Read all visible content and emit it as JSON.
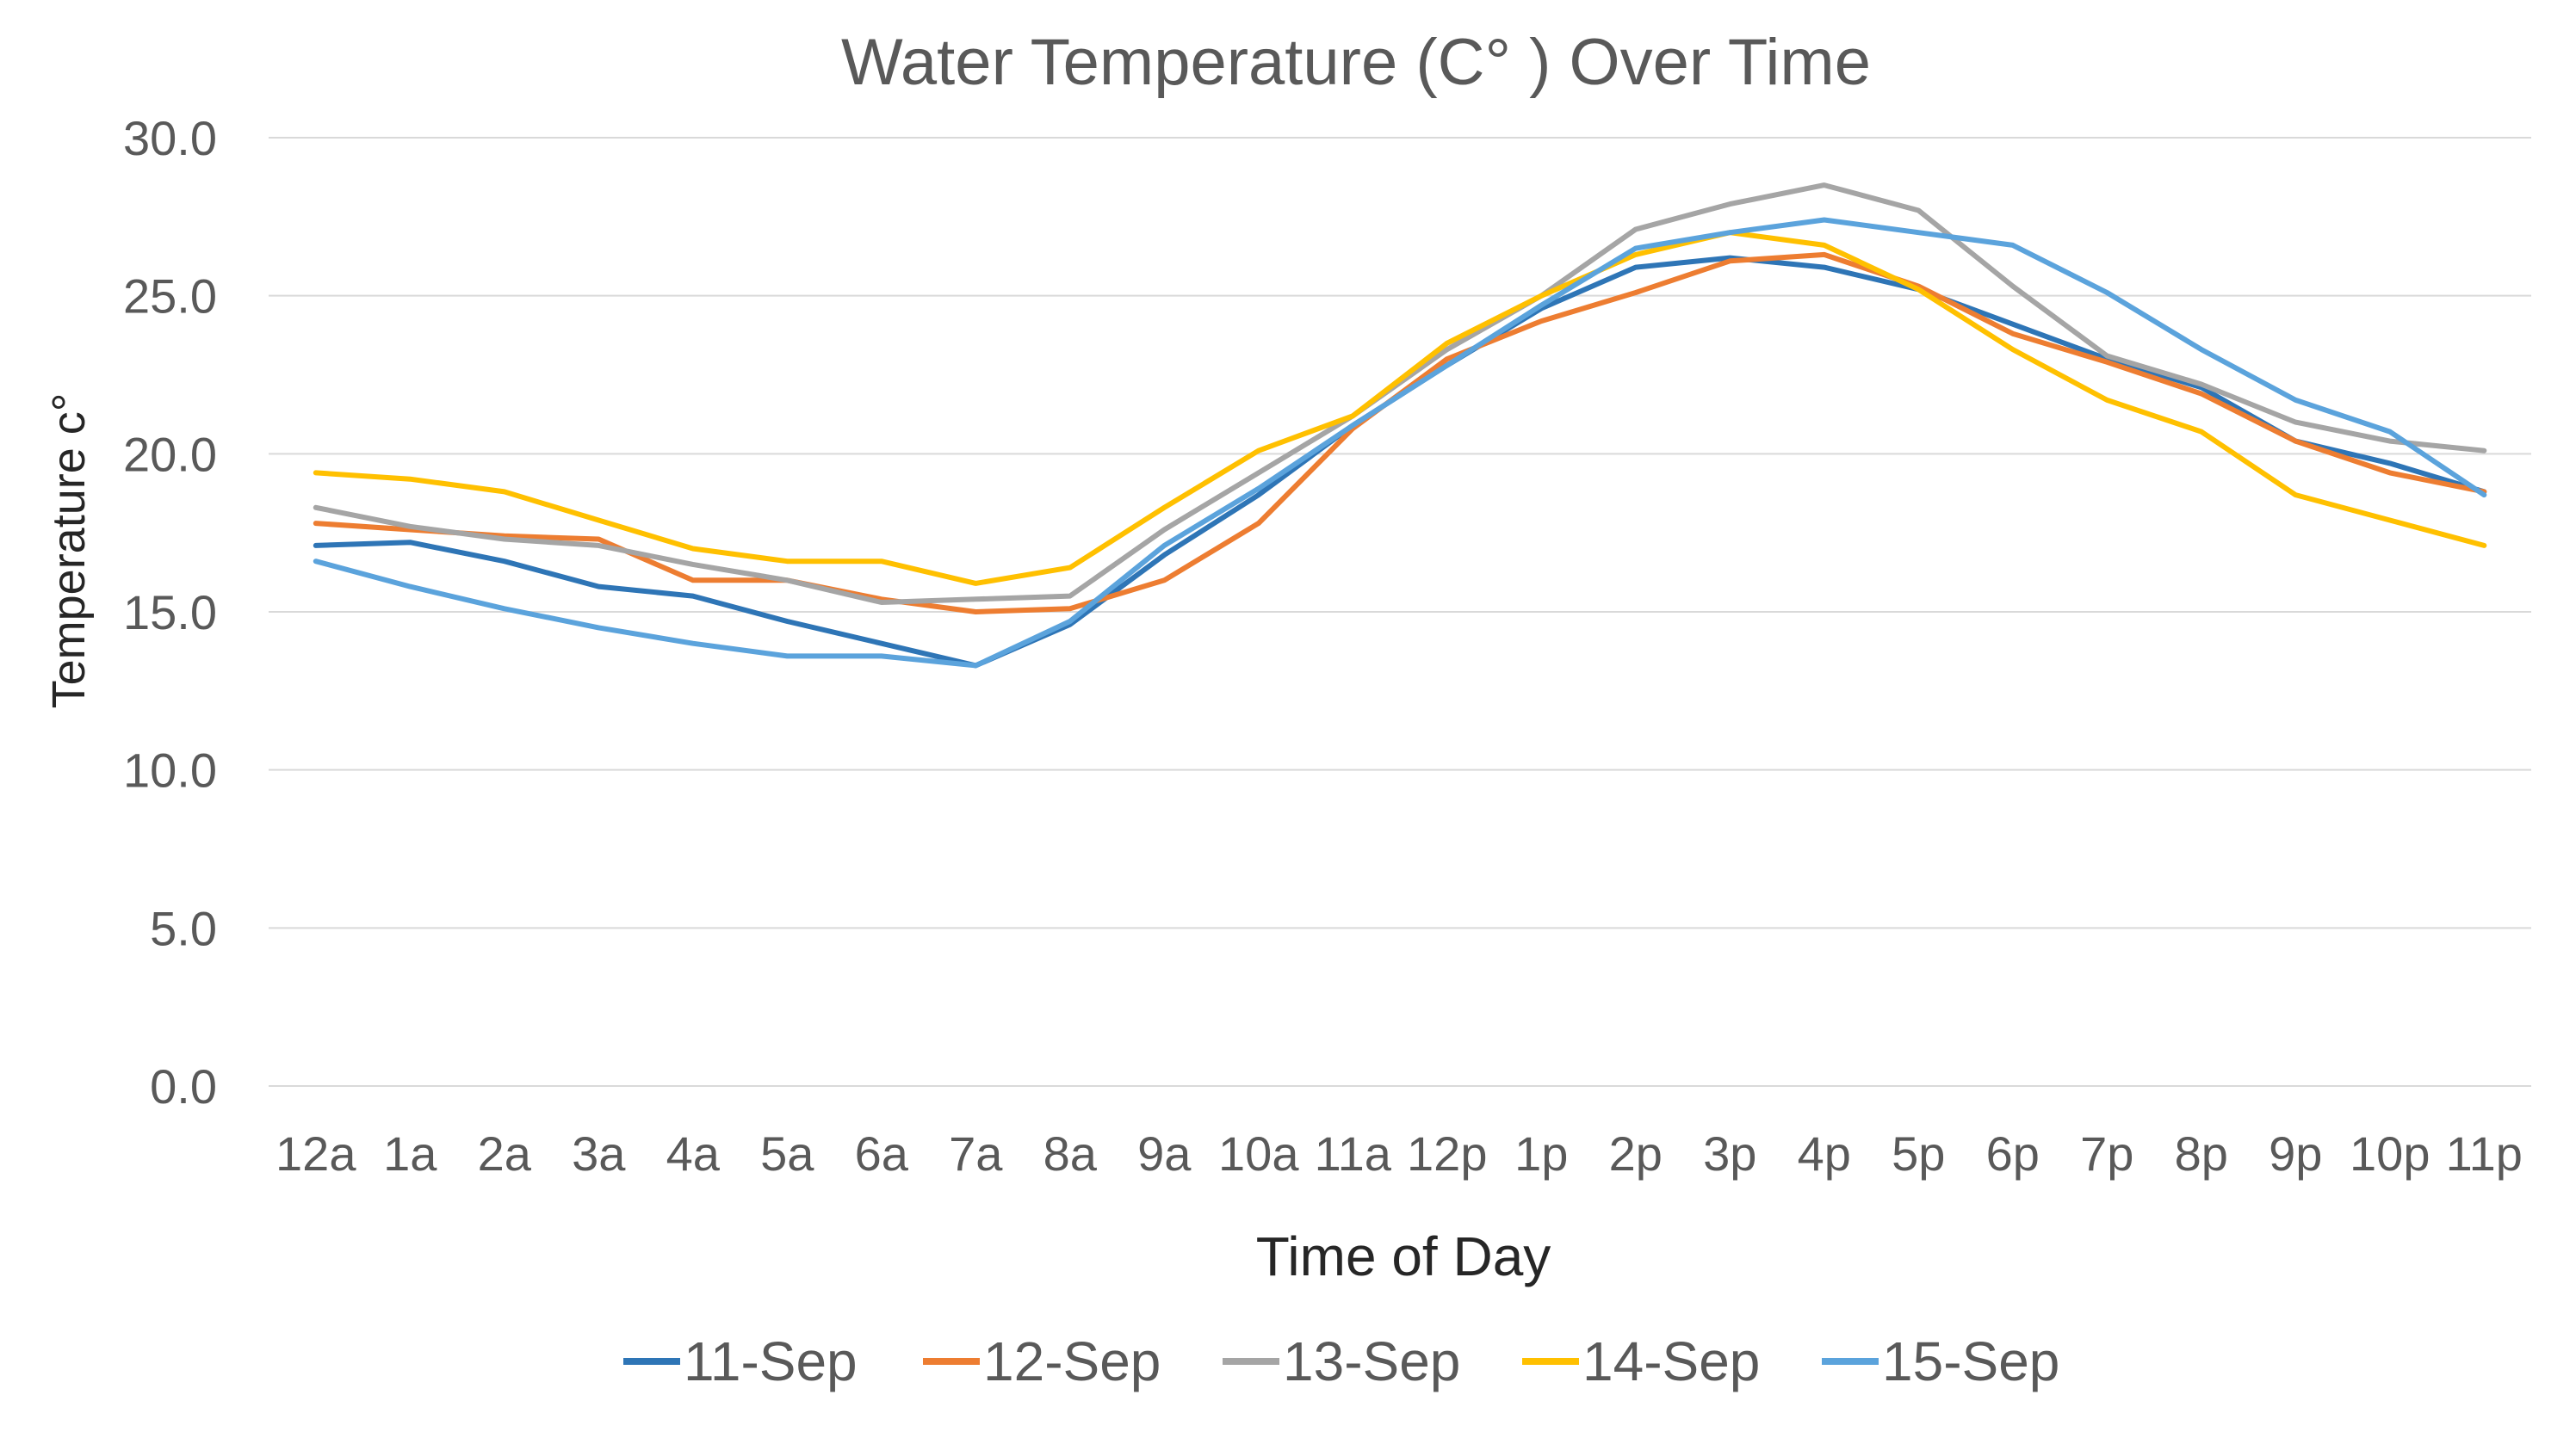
{
  "chart_data": {
    "type": "line",
    "title": "Water Temperature (C° ) Over Time",
    "xlabel": "Time of Day",
    "ylabel": "Temperature c°",
    "ylim": [
      0,
      30
    ],
    "y_ticks": [
      "0.0",
      "5.0",
      "10.0",
      "15.0",
      "20.0",
      "25.0",
      "30.0"
    ],
    "grid": true,
    "legend_position": "bottom",
    "categories": [
      "12a",
      "1a",
      "2a",
      "3a",
      "4a",
      "5a",
      "6a",
      "7a",
      "8a",
      "9a",
      "10a",
      "11a",
      "12p",
      "1p",
      "2p",
      "3p",
      "4p",
      "5p",
      "6p",
      "7p",
      "8p",
      "9p",
      "10p",
      "11p"
    ],
    "series": [
      {
        "name": "11-Sep",
        "color": "#2e75b6",
        "values": [
          17.1,
          17.2,
          16.6,
          15.8,
          15.5,
          14.7,
          14.0,
          13.3,
          14.6,
          16.8,
          18.7,
          20.9,
          22.8,
          24.6,
          25.9,
          26.2,
          25.9,
          25.2,
          24.1,
          23.0,
          22.1,
          20.4,
          19.7,
          18.8
        ]
      },
      {
        "name": "12-Sep",
        "color": "#ed7d31",
        "values": [
          17.8,
          17.6,
          17.4,
          17.3,
          16.0,
          16.0,
          15.4,
          15.0,
          15.1,
          16.0,
          17.8,
          20.8,
          23.0,
          24.2,
          25.1,
          26.1,
          26.3,
          25.3,
          23.8,
          22.9,
          21.9,
          20.4,
          19.4,
          18.8
        ]
      },
      {
        "name": "13-Sep",
        "color": "#a5a5a5",
        "values": [
          18.3,
          17.7,
          17.3,
          17.1,
          16.5,
          16.0,
          15.3,
          15.4,
          15.5,
          17.6,
          19.4,
          21.2,
          23.3,
          25.0,
          27.1,
          27.9,
          28.5,
          27.7,
          25.3,
          23.1,
          22.2,
          21.0,
          20.4,
          20.1
        ]
      },
      {
        "name": "14-Sep",
        "color": "#ffc000",
        "values": [
          19.4,
          19.2,
          18.8,
          17.9,
          17.0,
          16.6,
          16.6,
          15.9,
          16.4,
          18.3,
          20.1,
          21.2,
          23.5,
          25.0,
          26.3,
          27.0,
          26.6,
          25.2,
          23.3,
          21.7,
          20.7,
          18.7,
          17.9,
          17.1
        ]
      },
      {
        "name": "15-Sep",
        "color": "#5ba3dc",
        "values": [
          16.6,
          15.8,
          15.1,
          14.5,
          14.0,
          13.6,
          13.6,
          13.3,
          14.7,
          17.1,
          18.9,
          20.9,
          22.8,
          24.7,
          26.5,
          27.0,
          27.4,
          27.0,
          26.6,
          25.1,
          23.3,
          21.7,
          20.7,
          18.7
        ]
      }
    ]
  }
}
